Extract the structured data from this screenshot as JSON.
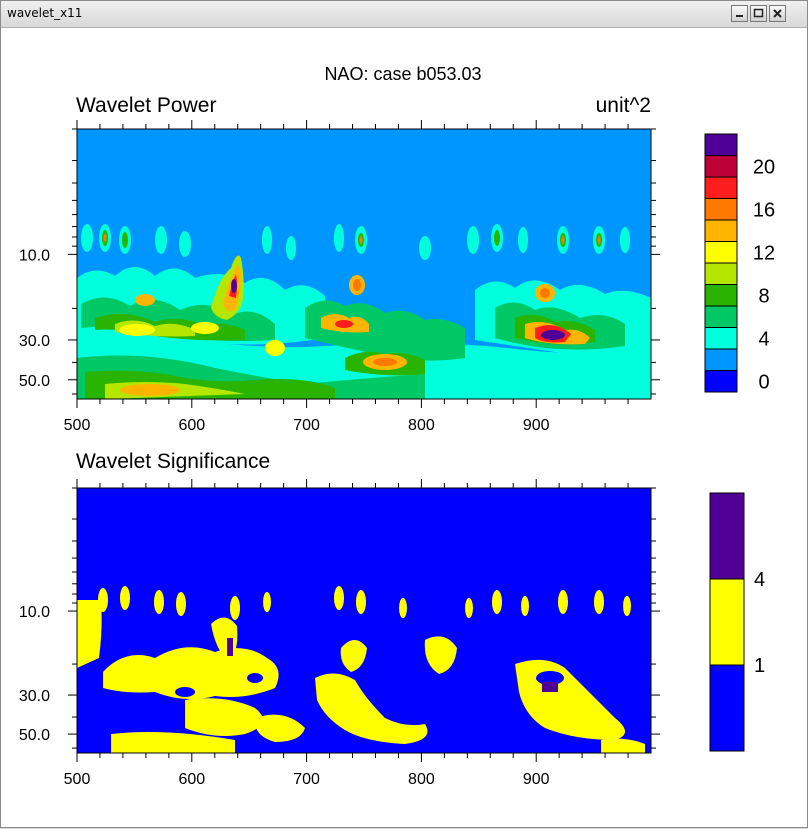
{
  "window": {
    "title": "wavelet_x11",
    "buttons": [
      "minimize-icon",
      "maximize-icon",
      "close-icon"
    ]
  },
  "figure_title": "NAO: case b053.03",
  "chart_data": [
    {
      "type": "heatmap",
      "title": "Wavelet Power",
      "unit_label": "unit^2",
      "xlabel": "",
      "ylabel": "",
      "x_ticks": [
        "500",
        "600",
        "700",
        "800",
        "900"
      ],
      "xlim": [
        500,
        1000
      ],
      "y_ticks": [
        "10.0",
        "30.0",
        "50.0"
      ],
      "y_scale": "log",
      "ylim": [
        2,
        64
      ],
      "colorbar": {
        "levels": [
          "0",
          "4",
          "8",
          "12",
          "16",
          "20"
        ],
        "colors": [
          "#0000ff",
          "#0096ff",
          "#00ffdd",
          "#00c864",
          "#28b400",
          "#b4e600",
          "#ffff00",
          "#ffb400",
          "#ff7800",
          "#ff1e1e",
          "#be0037",
          "#500096"
        ]
      },
      "background_color": "#0096ff",
      "grid": false,
      "legend": "right"
    },
    {
      "type": "heatmap",
      "title": "Wavelet Significance",
      "xlabel": "",
      "ylabel": "",
      "x_ticks": [
        "500",
        "600",
        "700",
        "800",
        "900"
      ],
      "xlim": [
        500,
        1000
      ],
      "y_ticks": [
        "10.0",
        "30.0",
        "50.0"
      ],
      "y_scale": "log",
      "ylim": [
        2,
        64
      ],
      "colorbar": {
        "levels": [
          "1",
          "4"
        ],
        "colors": [
          "#0000ff",
          "#ffff00",
          "#500096"
        ]
      },
      "background_color": "#0000ff",
      "grid": false,
      "legend": "right"
    }
  ]
}
